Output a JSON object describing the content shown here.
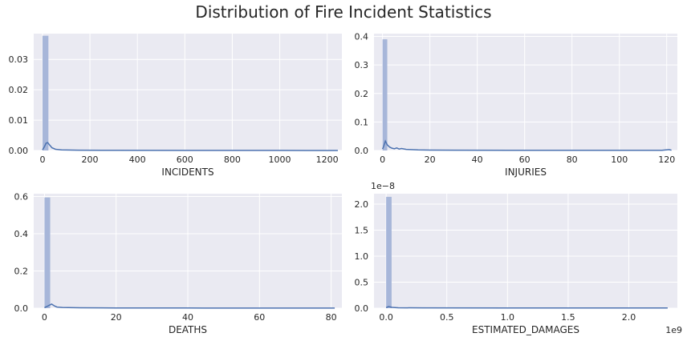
{
  "figure": {
    "title": "Distribution of Fire Incident Statistics",
    "background": "#ffffff",
    "axes_facecolor": "#eaeaf2",
    "grid_color": "#ffffff",
    "hist_color": "#a7b6d9",
    "kde_color": "#4c72b0"
  },
  "chart_data": [
    {
      "type": "histogram",
      "xlabel": "INCIDENTS",
      "ylabel": "",
      "grid": true,
      "xlim": [
        -37,
        1262
      ],
      "ylim": [
        0,
        0.0385
      ],
      "xticks": [
        0,
        200,
        400,
        600,
        800,
        1000,
        1200
      ],
      "xtick_labels": [
        "0",
        "200",
        "400",
        "600",
        "800",
        "1000",
        "1200"
      ],
      "yticks": [
        0.0,
        0.01,
        0.02,
        0.03
      ],
      "ytick_labels": [
        "0.00",
        "0.01",
        "0.02",
        "0.03"
      ],
      "offset_text": "",
      "bins": [
        {
          "x0": 0,
          "x1": 25,
          "density": 0.0378
        }
      ],
      "kde": [
        [
          0,
          0.0002
        ],
        [
          8,
          0.0012
        ],
        [
          15,
          0.0024
        ],
        [
          22,
          0.0026
        ],
        [
          30,
          0.0018
        ],
        [
          40,
          0.0009
        ],
        [
          55,
          0.0004
        ],
        [
          80,
          0.0002
        ],
        [
          150,
          0.0001
        ],
        [
          300,
          5e-05
        ],
        [
          600,
          3e-05
        ],
        [
          1000,
          2e-05
        ],
        [
          1245,
          1e-05
        ]
      ]
    },
    {
      "type": "histogram",
      "xlabel": "INJURIES",
      "ylabel": "",
      "grid": true,
      "xlim": [
        -3.6,
        124.5
      ],
      "ylim": [
        0,
        0.41
      ],
      "xticks": [
        0,
        20,
        40,
        60,
        80,
        100,
        120
      ],
      "xtick_labels": [
        "0",
        "20",
        "40",
        "60",
        "80",
        "100",
        "120"
      ],
      "yticks": [
        0.0,
        0.1,
        0.2,
        0.3,
        0.4
      ],
      "ytick_labels": [
        "0.0",
        "0.1",
        "0.2",
        "0.3",
        "0.4"
      ],
      "offset_text": "",
      "bins": [
        {
          "x0": 0,
          "x1": 2,
          "density": 0.39
        }
      ],
      "kde": [
        [
          0,
          0.005
        ],
        [
          0.5,
          0.015
        ],
        [
          1.2,
          0.033
        ],
        [
          2,
          0.02
        ],
        [
          3,
          0.012
        ],
        [
          4,
          0.008
        ],
        [
          5,
          0.006
        ],
        [
          6,
          0.009
        ],
        [
          7,
          0.005
        ],
        [
          8,
          0.007
        ],
        [
          10,
          0.004
        ],
        [
          12,
          0.003
        ],
        [
          15,
          0.002
        ],
        [
          20,
          0.0015
        ],
        [
          30,
          0.001
        ],
        [
          60,
          0.0008
        ],
        [
          90,
          0.0008
        ],
        [
          118,
          0.0008
        ],
        [
          121,
          0.003
        ],
        [
          122,
          0.001
        ]
      ]
    },
    {
      "type": "histogram",
      "xlabel": "DEATHS",
      "ylabel": "",
      "grid": true,
      "xlim": [
        -3,
        83
      ],
      "ylim": [
        0,
        0.615
      ],
      "xticks": [
        0,
        20,
        40,
        60,
        80
      ],
      "xtick_labels": [
        "0",
        "20",
        "40",
        "60",
        "80"
      ],
      "yticks": [
        0.0,
        0.2,
        0.4,
        0.6
      ],
      "ytick_labels": [
        "0.0",
        "0.2",
        "0.4",
        "0.6"
      ],
      "offset_text": "",
      "bins": [
        {
          "x0": 0,
          "x1": 1.6,
          "density": 0.595
        }
      ],
      "kde": [
        [
          0,
          0.003
        ],
        [
          1,
          0.012
        ],
        [
          2,
          0.022
        ],
        [
          2.8,
          0.012
        ],
        [
          3.5,
          0.006
        ],
        [
          5,
          0.004
        ],
        [
          10,
          0.002
        ],
        [
          20,
          0.001
        ],
        [
          40,
          0.0008
        ],
        [
          60,
          0.0007
        ],
        [
          81,
          0.0007
        ]
      ]
    },
    {
      "type": "histogram",
      "xlabel": "ESTIMATED_DAMAGES",
      "ylabel": "",
      "grid": true,
      "xlim": [
        -0.1,
        2.4
      ],
      "ylim": [
        0,
        2.2
      ],
      "xticks": [
        0.0,
        0.5,
        1.0,
        1.5,
        2.0
      ],
      "xtick_labels": [
        "0.0",
        "0.5",
        "1.0",
        "1.5",
        "2.0"
      ],
      "yticks": [
        0.0,
        0.5,
        1.0,
        1.5,
        2.0
      ],
      "ytick_labels": [
        "0.0",
        "0.5",
        "1.0",
        "1.5",
        "2.0"
      ],
      "offset_text": "1e−8",
      "x_offset_text": "1e9",
      "bins": [
        {
          "x0": 0,
          "x1": 0.045,
          "density": 2.14
        }
      ],
      "kde": [
        [
          0,
          0.01
        ],
        [
          0.02,
          0.03
        ],
        [
          0.05,
          0.015
        ],
        [
          0.1,
          0.008
        ],
        [
          0.3,
          0.005
        ],
        [
          1.0,
          0.004
        ],
        [
          2.0,
          0.003
        ],
        [
          2.32,
          0.003
        ]
      ]
    }
  ]
}
